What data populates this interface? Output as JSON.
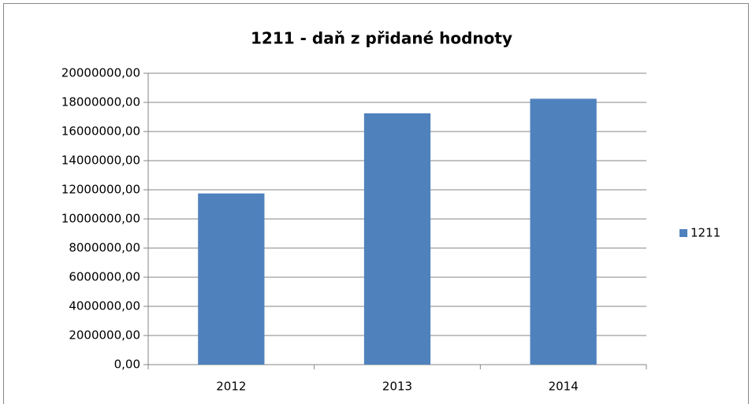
{
  "chart_data": {
    "type": "bar",
    "title": "1211 - daň z přidané hodnoty",
    "categories": [
      "2012",
      "2013",
      "2014"
    ],
    "series": [
      {
        "name": "1211",
        "color": "#4f81bd",
        "values": [
          11750000,
          17250000,
          18250000
        ]
      }
    ],
    "ylim": [
      0,
      20000000
    ],
    "yticks": [
      {
        "value": 0,
        "label": "0,00"
      },
      {
        "value": 2000000,
        "label": "2000000,00"
      },
      {
        "value": 4000000,
        "label": "4000000,00"
      },
      {
        "value": 6000000,
        "label": "6000000,00"
      },
      {
        "value": 8000000,
        "label": "8000000,00"
      },
      {
        "value": 10000000,
        "label": "10000000,00"
      },
      {
        "value": 12000000,
        "label": "12000000,00"
      },
      {
        "value": 14000000,
        "label": "14000000,00"
      },
      {
        "value": 16000000,
        "label": "16000000,00"
      },
      {
        "value": 18000000,
        "label": "18000000,00"
      },
      {
        "value": 20000000,
        "label": "20000000,00"
      }
    ],
    "grid": true,
    "legend": "right"
  }
}
